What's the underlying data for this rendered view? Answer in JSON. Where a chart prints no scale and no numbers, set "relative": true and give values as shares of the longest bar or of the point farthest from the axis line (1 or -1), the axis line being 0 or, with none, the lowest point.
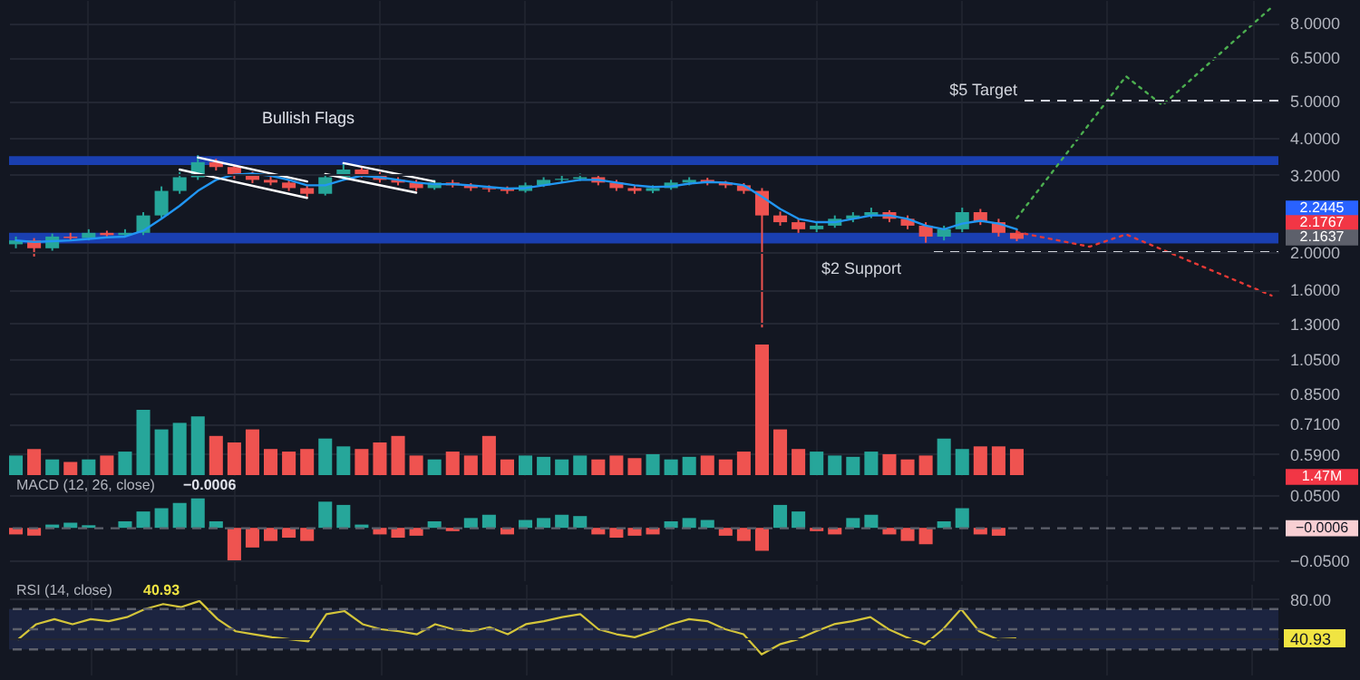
{
  "chart_data": [
    {
      "type": "candlestick",
      "categories": [
        null,
        null,
        null,
        null,
        null,
        null,
        null,
        null,
        null,
        null,
        null,
        null,
        null,
        null,
        null,
        null,
        null,
        null,
        null,
        null,
        null,
        null,
        null,
        null,
        null,
        null,
        null,
        null,
        null,
        null,
        null,
        null,
        null,
        null,
        null,
        null,
        null,
        null,
        null,
        null,
        null,
        null,
        null,
        null,
        null,
        null,
        null,
        null,
        null,
        null,
        null,
        null,
        null,
        null,
        null,
        null,
        null,
        null,
        null,
        null,
        null,
        null,
        null,
        null,
        null,
        null,
        null,
        null,
        null,
        null
      ],
      "ohlc": [
        [
          2.1,
          2.2,
          2.05,
          2.15
        ],
        [
          2.15,
          2.18,
          1.95,
          2.05
        ],
        [
          2.05,
          2.24,
          2.02,
          2.2
        ],
        [
          2.2,
          2.25,
          2.14,
          2.18
        ],
        [
          2.18,
          2.3,
          2.15,
          2.25
        ],
        [
          2.25,
          2.28,
          2.18,
          2.22
        ],
        [
          2.22,
          2.3,
          2.19,
          2.25
        ],
        [
          2.25,
          2.55,
          2.22,
          2.5
        ],
        [
          2.5,
          2.98,
          2.46,
          2.9
        ],
        [
          2.9,
          3.25,
          2.85,
          3.15
        ],
        [
          3.15,
          3.6,
          3.1,
          3.45
        ],
        [
          3.45,
          3.52,
          3.28,
          3.35
        ],
        [
          3.35,
          3.4,
          3.12,
          3.2
        ],
        [
          3.2,
          3.26,
          3.04,
          3.1
        ],
        [
          3.1,
          3.16,
          3.0,
          3.05
        ],
        [
          3.05,
          3.1,
          2.9,
          2.95
        ],
        [
          2.95,
          3.0,
          2.8,
          2.85
        ],
        [
          2.85,
          3.2,
          2.82,
          3.15
        ],
        [
          3.15,
          3.42,
          3.1,
          3.3
        ],
        [
          3.3,
          3.36,
          3.14,
          3.2
        ],
        [
          3.2,
          3.25,
          3.05,
          3.1
        ],
        [
          3.1,
          3.15,
          3.0,
          3.05
        ],
        [
          3.05,
          3.1,
          2.9,
          2.95
        ],
        [
          2.95,
          3.1,
          2.92,
          3.05
        ],
        [
          3.05,
          3.1,
          2.96,
          3.0
        ],
        [
          3.0,
          3.04,
          2.9,
          2.95
        ],
        [
          2.95,
          3.0,
          2.88,
          2.93
        ],
        [
          2.93,
          2.98,
          2.85,
          2.9
        ],
        [
          2.9,
          3.05,
          2.87,
          3.0
        ],
        [
          3.0,
          3.15,
          2.97,
          3.1
        ],
        [
          3.1,
          3.18,
          3.05,
          3.12
        ],
        [
          3.12,
          3.22,
          3.08,
          3.15
        ],
        [
          3.15,
          3.18,
          3.0,
          3.05
        ],
        [
          3.05,
          3.1,
          2.9,
          2.95
        ],
        [
          2.95,
          3.0,
          2.85,
          2.9
        ],
        [
          2.9,
          3.0,
          2.86,
          2.95
        ],
        [
          2.95,
          3.1,
          2.92,
          3.05
        ],
        [
          3.05,
          3.15,
          3.0,
          3.1
        ],
        [
          3.1,
          3.14,
          3.0,
          3.05
        ],
        [
          3.05,
          3.08,
          2.95,
          3.0
        ],
        [
          3.0,
          3.04,
          2.85,
          2.9
        ],
        [
          2.9,
          2.95,
          1.27,
          2.5
        ],
        [
          2.5,
          2.56,
          2.35,
          2.4
        ],
        [
          2.4,
          2.45,
          2.25,
          2.3
        ],
        [
          2.3,
          2.4,
          2.26,
          2.35
        ],
        [
          2.35,
          2.5,
          2.32,
          2.45
        ],
        [
          2.45,
          2.55,
          2.4,
          2.5
        ],
        [
          2.5,
          2.62,
          2.46,
          2.55
        ],
        [
          2.55,
          2.58,
          2.4,
          2.45
        ],
        [
          2.45,
          2.5,
          2.3,
          2.35
        ],
        [
          2.35,
          2.4,
          2.12,
          2.2
        ],
        [
          2.2,
          2.35,
          2.15,
          2.3
        ],
        [
          2.3,
          2.62,
          2.26,
          2.55
        ],
        [
          2.55,
          2.6,
          2.36,
          2.4
        ],
        [
          2.4,
          2.45,
          2.2,
          2.25
        ],
        [
          2.25,
          2.3,
          2.14,
          2.17
        ],
        null,
        null,
        null,
        null,
        null,
        null,
        null,
        null,
        null,
        null,
        null,
        null,
        null,
        null
      ],
      "series": [
        {
          "type": "line",
          "color": "#2196f3",
          "values": [
            2.15,
            2.13,
            2.14,
            2.15,
            2.17,
            2.19,
            2.2,
            2.28,
            2.45,
            2.65,
            2.9,
            3.1,
            3.2,
            3.22,
            3.18,
            3.1,
            3.0,
            3.0,
            3.1,
            3.18,
            3.15,
            3.1,
            3.05,
            3.02,
            3.02,
            3.0,
            2.97,
            2.94,
            2.95,
            3.0,
            3.05,
            3.1,
            3.1,
            3.05,
            3.0,
            2.97,
            2.98,
            3.03,
            3.06,
            3.05,
            3.0,
            2.8,
            2.6,
            2.45,
            2.4,
            2.4,
            2.45,
            2.5,
            2.5,
            2.45,
            2.35,
            2.3,
            2.38,
            2.42,
            2.38,
            2.3,
            null,
            null,
            null,
            null,
            null,
            null,
            null,
            null,
            null,
            null,
            null,
            null,
            null,
            null
          ]
        },
        {
          "type": "line",
          "color": "#ffffff",
          "values": [
            null,
            null,
            null,
            null,
            null,
            null,
            null,
            null,
            null,
            null,
            3.55,
            null,
            null,
            null,
            null,
            null,
            3.07,
            null,
            null,
            null,
            null,
            null,
            null,
            null,
            null,
            null,
            null,
            null,
            null,
            null,
            null,
            null,
            null,
            null,
            null,
            null,
            null,
            null,
            null,
            null,
            null,
            null,
            null,
            null,
            null,
            null,
            null,
            null,
            null,
            null,
            null,
            null,
            null,
            null,
            null,
            null,
            null,
            null,
            null,
            null,
            null,
            null,
            null,
            null,
            null,
            null,
            null,
            null,
            null,
            null
          ]
        },
        {
          "type": "line",
          "color": "#ffffff",
          "values": [
            null,
            null,
            null,
            null,
            null,
            null,
            null,
            null,
            null,
            3.3,
            null,
            null,
            null,
            null,
            null,
            null,
            2.78,
            null,
            null,
            null,
            null,
            null,
            null,
            null,
            null,
            null,
            null,
            null,
            null,
            null,
            null,
            null,
            null,
            null,
            null,
            null,
            null,
            null,
            null,
            null,
            null,
            null,
            null,
            null,
            null,
            null,
            null,
            null,
            null,
            null,
            null,
            null,
            null,
            null,
            null,
            null,
            null,
            null,
            null,
            null,
            null,
            null,
            null,
            null,
            null,
            null,
            null,
            null,
            null,
            null
          ]
        },
        {
          "type": "line",
          "color": "#ffffff",
          "values": [
            null,
            null,
            null,
            null,
            null,
            null,
            null,
            null,
            null,
            null,
            null,
            null,
            null,
            null,
            null,
            null,
            null,
            null,
            3.43,
            null,
            null,
            null,
            null,
            3.07,
            null,
            null,
            null,
            null,
            null,
            null,
            null,
            null,
            null,
            null,
            null,
            null,
            null,
            null,
            null,
            null,
            null,
            null,
            null,
            null,
            null,
            null,
            null,
            null,
            null,
            null,
            null,
            null,
            null,
            null,
            null,
            null,
            null,
            null,
            null,
            null,
            null,
            null,
            null,
            null,
            null,
            null,
            null,
            null,
            null,
            null
          ]
        },
        {
          "type": "line",
          "color": "#ffffff",
          "values": [
            null,
            null,
            null,
            null,
            null,
            null,
            null,
            null,
            null,
            null,
            null,
            null,
            null,
            null,
            null,
            null,
            null,
            3.21,
            null,
            null,
            null,
            null,
            2.87,
            null,
            null,
            null,
            null,
            null,
            null,
            null,
            null,
            null,
            null,
            null,
            null,
            null,
            null,
            null,
            null,
            null,
            null,
            null,
            null,
            null,
            null,
            null,
            null,
            null,
            null,
            null,
            null,
            null,
            null,
            null,
            null,
            null,
            null,
            null,
            null,
            null,
            null,
            null,
            null,
            null,
            null,
            null,
            null,
            null,
            null,
            null
          ]
        },
        {
          "type": "line",
          "color": "#4caf50",
          "line_style": "dotted",
          "values": [
            null,
            null,
            null,
            null,
            null,
            null,
            null,
            null,
            null,
            null,
            null,
            null,
            null,
            null,
            null,
            null,
            null,
            null,
            null,
            null,
            null,
            null,
            null,
            null,
            null,
            null,
            null,
            null,
            null,
            null,
            null,
            null,
            null,
            null,
            null,
            null,
            null,
            null,
            null,
            null,
            null,
            null,
            null,
            null,
            null,
            null,
            null,
            null,
            null,
            null,
            null,
            null,
            null,
            null,
            null,
            2.46,
            null,
            null,
            null,
            null,
            null,
            5.8,
            null,
            4.87,
            null,
            null,
            null,
            null,
            null,
            8.8
          ]
        },
        {
          "type": "line",
          "color": "#e53935",
          "line_style": "dotted",
          "values": [
            null,
            null,
            null,
            null,
            null,
            null,
            null,
            null,
            null,
            null,
            null,
            null,
            null,
            null,
            null,
            null,
            null,
            null,
            null,
            null,
            null,
            null,
            null,
            null,
            null,
            null,
            null,
            null,
            null,
            null,
            null,
            null,
            null,
            null,
            null,
            null,
            null,
            null,
            null,
            null,
            null,
            null,
            null,
            null,
            null,
            null,
            null,
            null,
            null,
            null,
            null,
            null,
            null,
            null,
            null,
            2.26,
            null,
            null,
            null,
            2.07,
            null,
            2.23,
            null,
            null,
            null,
            null,
            null,
            null,
            null,
            1.54
          ]
        }
      ],
      "log": true,
      "ylim": [
        0.52,
        9.2
      ],
      "yticks": [
        {
          "value": 8,
          "label": "8.0000"
        },
        {
          "value": 6.5,
          "label": "6.5000"
        },
        {
          "value": 5,
          "label": "5.0000"
        },
        {
          "value": 4,
          "label": "4.0000"
        },
        {
          "value": 3.2,
          "label": "3.2000"
        },
        {
          "value": 2,
          "label": "2.0000"
        },
        {
          "value": 1.6,
          "label": "1.6000"
        },
        {
          "value": 1.3,
          "label": "1.3000"
        },
        {
          "value": 1.05,
          "label": "1.0500"
        },
        {
          "value": 0.85,
          "label": "0.8500"
        },
        {
          "value": 0.71,
          "label": "0.7100"
        },
        {
          "value": 0.59,
          "label": "0.5900"
        }
      ],
      "grid": true,
      "tick_labels": "y",
      "bands": [
        {
          "axis": "y",
          "from": 3.39,
          "to": 3.58,
          "color": "#1a3fb0"
        },
        {
          "axis": "y",
          "from": 2.11,
          "to": 2.25,
          "color": "#1a3fb0"
        }
      ],
      "ref_lines": [
        {
          "axis": "y",
          "value": 5,
          "label": "$5 Target",
          "line_style": "dashed",
          "color": "#d1d4dc"
        },
        {
          "axis": "y",
          "value": 2,
          "label": "$2 Support",
          "line_style": "dashed",
          "color": "#d1d4dc"
        }
      ],
      "annotations": [
        "Bullish Flags",
        "2.2445",
        "2.1767",
        "2.1637"
      ]
    },
    {
      "type": "bar",
      "relative": true,
      "tick_labels": false,
      "categories": [
        null,
        null,
        null,
        null,
        null,
        null,
        null,
        null,
        null,
        null,
        null,
        null,
        null,
        null,
        null,
        null,
        null,
        null,
        null,
        null,
        null,
        null,
        null,
        null,
        null,
        null,
        null,
        null,
        null,
        null,
        null,
        null,
        null,
        null,
        null,
        null,
        null,
        null,
        null,
        null,
        null,
        null,
        null,
        null,
        null,
        null,
        null,
        null,
        null,
        null,
        null,
        null,
        null,
        null,
        null,
        null,
        null,
        null,
        null,
        null,
        null,
        null,
        null,
        null,
        null,
        null,
        null,
        null,
        null,
        null
      ],
      "values": [
        0.15,
        0.2,
        0.12,
        0.1,
        0.12,
        0.15,
        0.18,
        0.5,
        0.35,
        0.4,
        0.45,
        0.3,
        0.25,
        0.35,
        0.2,
        0.18,
        0.2,
        0.28,
        0.22,
        0.2,
        0.25,
        0.3,
        0.15,
        0.12,
        0.18,
        0.15,
        0.3,
        0.12,
        0.15,
        0.14,
        0.12,
        0.15,
        0.12,
        0.15,
        0.13,
        0.16,
        0.12,
        0.14,
        0.15,
        0.12,
        0.18,
        1.0,
        0.35,
        0.2,
        0.18,
        0.15,
        0.14,
        0.18,
        0.16,
        0.12,
        0.15,
        0.28,
        0.2,
        0.22,
        0.22,
        0.2,
        null,
        null,
        null,
        null,
        null,
        null,
        null,
        null,
        null,
        null,
        null,
        null,
        null,
        null
      ],
      "colors": [
        "#26a69a",
        "#ef5350",
        "#26a69a",
        "#ef5350",
        "#26a69a",
        "#ef5350",
        "#26a69a",
        "#26a69a",
        "#26a69a",
        "#26a69a",
        "#26a69a",
        "#ef5350",
        "#ef5350",
        "#ef5350",
        "#ef5350",
        "#ef5350",
        "#ef5350",
        "#26a69a",
        "#26a69a",
        "#ef5350",
        "#ef5350",
        "#ef5350",
        "#ef5350",
        "#26a69a",
        "#ef5350",
        "#ef5350",
        "#ef5350",
        "#ef5350",
        "#26a69a",
        "#26a69a",
        "#26a69a",
        "#26a69a",
        "#ef5350",
        "#ef5350",
        "#ef5350",
        "#26a69a",
        "#26a69a",
        "#26a69a",
        "#ef5350",
        "#ef5350",
        "#ef5350",
        "#ef5350",
        "#ef5350",
        "#ef5350",
        "#26a69a",
        "#26a69a",
        "#26a69a",
        "#26a69a",
        "#ef5350",
        "#ef5350",
        "#ef5350",
        "#26a69a",
        "#26a69a",
        "#ef5350",
        "#ef5350",
        "#ef5350",
        null,
        null,
        null,
        null,
        null,
        null,
        null,
        null,
        null,
        null,
        null,
        null,
        null,
        null
      ],
      "annotations": [
        "1.47M"
      ]
    },
    {
      "type": "bar",
      "title": "MACD (12, 26, close)",
      "subtitle": "−0.0006",
      "tick_labels": "y",
      "grid": true,
      "categories": [
        null,
        null,
        null,
        null,
        null,
        null,
        null,
        null,
        null,
        null,
        null,
        null,
        null,
        null,
        null,
        null,
        null,
        null,
        null,
        null,
        null,
        null,
        null,
        null,
        null,
        null,
        null,
        null,
        null,
        null,
        null,
        null,
        null,
        null,
        null,
        null,
        null,
        null,
        null,
        null,
        null,
        null,
        null,
        null,
        null,
        null,
        null,
        null,
        null,
        null,
        null,
        null,
        null,
        null,
        null,
        null,
        null,
        null,
        null,
        null,
        null,
        null,
        null,
        null,
        null,
        null,
        null,
        null,
        null,
        null
      ],
      "values": [
        -0.01,
        -0.012,
        0.005,
        0.008,
        0.004,
        null,
        0.01,
        0.025,
        0.03,
        0.038,
        0.045,
        0.01,
        -0.05,
        -0.03,
        -0.02,
        -0.015,
        -0.02,
        0.04,
        0.035,
        0.005,
        -0.01,
        -0.015,
        -0.012,
        0.01,
        -0.005,
        0.015,
        0.02,
        -0.01,
        0.012,
        0.015,
        0.02,
        0.018,
        -0.01,
        -0.015,
        -0.012,
        -0.01,
        0.01,
        0.015,
        0.012,
        -0.012,
        -0.02,
        -0.035,
        0.035,
        0.025,
        -0.005,
        -0.01,
        0.015,
        0.02,
        -0.01,
        -0.02,
        -0.025,
        0.01,
        0.03,
        -0.01,
        -0.012,
        null,
        null,
        null,
        null,
        null,
        null,
        null,
        null,
        null,
        null,
        null,
        null,
        null,
        null,
        null
      ],
      "colors": [
        "#ef5350",
        "#ef5350",
        "#26a69a",
        "#26a69a",
        "#26a69a",
        "#26a69a",
        "#26a69a",
        "#26a69a",
        "#26a69a",
        "#26a69a",
        "#26a69a",
        "#26a69a",
        "#ef5350",
        "#ef5350",
        "#ef5350",
        "#ef5350",
        "#ef5350",
        "#26a69a",
        "#26a69a",
        "#26a69a",
        "#ef5350",
        "#ef5350",
        "#ef5350",
        "#26a69a",
        "#ef5350",
        "#26a69a",
        "#26a69a",
        "#ef5350",
        "#26a69a",
        "#26a69a",
        "#26a69a",
        "#26a69a",
        "#ef5350",
        "#ef5350",
        "#ef5350",
        "#ef5350",
        "#26a69a",
        "#26a69a",
        "#26a69a",
        "#ef5350",
        "#ef5350",
        "#ef5350",
        "#26a69a",
        "#26a69a",
        "#ef5350",
        "#ef5350",
        "#26a69a",
        "#26a69a",
        "#ef5350",
        "#ef5350",
        "#ef5350",
        "#26a69a",
        "#26a69a",
        "#ef5350",
        "#ef5350",
        "#ef5350",
        null,
        null,
        null,
        null,
        null,
        null,
        null,
        null,
        null,
        null,
        null,
        null,
        null,
        null
      ],
      "ylim": [
        -0.08,
        0.075
      ],
      "yticks": [
        {
          "value": 0.05,
          "label": "0.0500"
        },
        {
          "value": -0.05,
          "label": "−0.0500"
        }
      ],
      "ref_lines": [
        {
          "axis": "y",
          "value": -0.0006,
          "label": "−0.0006",
          "line_style": "dashed",
          "color": "#5d606b"
        }
      ]
    },
    {
      "type": "line",
      "title": "RSI (14, close)",
      "subtitle": "40.93",
      "tick_labels": "y",
      "grid": true,
      "color": "#d4c53a",
      "categories": [
        null,
        null,
        null,
        null,
        null,
        null,
        null,
        null,
        null,
        null,
        null,
        null,
        null,
        null,
        null,
        null,
        null,
        null,
        null,
        null,
        null,
        null,
        null,
        null,
        null,
        null,
        null,
        null,
        null,
        null,
        null,
        null,
        null,
        null,
        null,
        null,
        null,
        null,
        null,
        null,
        null,
        null,
        null,
        null,
        null,
        null,
        null,
        null,
        null,
        null,
        null,
        null,
        null,
        null,
        null,
        null,
        null,
        null,
        null,
        null,
        null,
        null,
        null,
        null,
        null,
        null,
        null,
        null,
        null,
        null
      ],
      "values": [
        40,
        55,
        60,
        55,
        60,
        58,
        62,
        70,
        75,
        72,
        78,
        60,
        48,
        45,
        42,
        40,
        38,
        65,
        68,
        55,
        50,
        48,
        45,
        55,
        50,
        48,
        52,
        45,
        55,
        58,
        62,
        65,
        50,
        45,
        42,
        48,
        55,
        60,
        58,
        50,
        45,
        25,
        35,
        40,
        48,
        55,
        58,
        62,
        50,
        42,
        35,
        50,
        70,
        48,
        40,
        41,
        null,
        null,
        null,
        null,
        null,
        null,
        null,
        null,
        null,
        null,
        null,
        null,
        null,
        null
      ],
      "ylim": [
        5,
        95
      ],
      "yticks": [
        {
          "value": 80,
          "label": "80.00"
        },
        {
          "value": 40.93,
          "label": "40.93"
        }
      ],
      "bands": [
        {
          "axis": "y",
          "from": 30,
          "to": 70,
          "color": "#1c2440"
        }
      ],
      "ref_lines": [
        {
          "axis": "y",
          "value": 70,
          "line_style": "dashed",
          "color": "#5d606b"
        },
        {
          "axis": "y",
          "value": 50,
          "line_style": "dashed",
          "color": "#5d606b"
        },
        {
          "axis": "y",
          "value": 30,
          "line_style": "dashed",
          "color": "#5d606b"
        }
      ]
    }
  ]
}
